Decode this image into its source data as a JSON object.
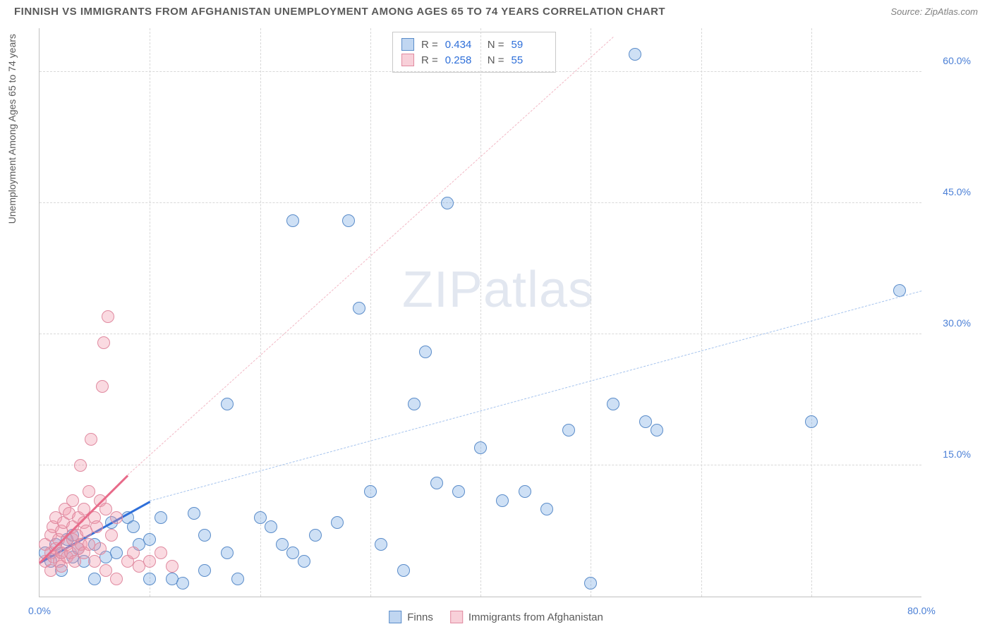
{
  "header": {
    "title": "FINNISH VS IMMIGRANTS FROM AFGHANISTAN UNEMPLOYMENT AMONG AGES 65 TO 74 YEARS CORRELATION CHART",
    "source": "Source: ZipAtlas.com"
  },
  "chart": {
    "type": "scatter",
    "y_axis_title": "Unemployment Among Ages 65 to 74 years",
    "xlim": [
      0,
      80
    ],
    "ylim": [
      0,
      65
    ],
    "x_ticks": [
      {
        "val": 0,
        "label": "0.0%"
      },
      {
        "val": 80,
        "label": "80.0%"
      }
    ],
    "y_ticks": [
      {
        "val": 15,
        "label": "15.0%"
      },
      {
        "val": 30,
        "label": "30.0%"
      },
      {
        "val": 45,
        "label": "45.0%"
      },
      {
        "val": 60,
        "label": "60.0%"
      }
    ],
    "x_gridlines": [
      10,
      20,
      30,
      40,
      50,
      60,
      70
    ],
    "y_gridlines": [
      15,
      30,
      45,
      60
    ],
    "background_color": "#ffffff",
    "grid_color": "#d8d8d8",
    "marker_radius": 9,
    "series": [
      {
        "name": "Finns",
        "color_fill": "rgba(115,165,225,0.35)",
        "color_stroke": "#5a8cc9",
        "trend_color": "#2e6fd9",
        "dash_color": "#a5c3ed",
        "R": "0.434",
        "N": "59",
        "trend_solid": {
          "x1": 0,
          "y1": 4,
          "x2": 10,
          "y2": 11
        },
        "trend_dash": {
          "x1": 10,
          "y1": 11,
          "x2": 80,
          "y2": 35
        },
        "points": [
          [
            0.5,
            5
          ],
          [
            1,
            4
          ],
          [
            1.5,
            6
          ],
          [
            2,
            5
          ],
          [
            2,
            3
          ],
          [
            2.5,
            6.5
          ],
          [
            3,
            4.5
          ],
          [
            3,
            7
          ],
          [
            3.5,
            5.5
          ],
          [
            4,
            4
          ],
          [
            5,
            6
          ],
          [
            5,
            2
          ],
          [
            6,
            4.5
          ],
          [
            6.5,
            8.5
          ],
          [
            7,
            5
          ],
          [
            8,
            9
          ],
          [
            8.5,
            8
          ],
          [
            9,
            6
          ],
          [
            10,
            2
          ],
          [
            10,
            6.5
          ],
          [
            11,
            9
          ],
          [
            12,
            2
          ],
          [
            13,
            1.5
          ],
          [
            14,
            9.5
          ],
          [
            15,
            7
          ],
          [
            15,
            3
          ],
          [
            17,
            5
          ],
          [
            17,
            22
          ],
          [
            18,
            2
          ],
          [
            20,
            9
          ],
          [
            21,
            8
          ],
          [
            22,
            6
          ],
          [
            23,
            43
          ],
          [
            23,
            5
          ],
          [
            24,
            4
          ],
          [
            25,
            7
          ],
          [
            27,
            8.5
          ],
          [
            28,
            43
          ],
          [
            29,
            33
          ],
          [
            30,
            12
          ],
          [
            31,
            6
          ],
          [
            33,
            3
          ],
          [
            34,
            22
          ],
          [
            35,
            28
          ],
          [
            36,
            13
          ],
          [
            37,
            45
          ],
          [
            38,
            12
          ],
          [
            40,
            17
          ],
          [
            42,
            11
          ],
          [
            44,
            12
          ],
          [
            46,
            10
          ],
          [
            48,
            19
          ],
          [
            50,
            1.5
          ],
          [
            52,
            22
          ],
          [
            54,
            62
          ],
          [
            55,
            20
          ],
          [
            56,
            19
          ],
          [
            70,
            20
          ],
          [
            78,
            35
          ]
        ]
      },
      {
        "name": "Immigrants from Afghanistan",
        "color_fill": "rgba(240,150,170,0.35)",
        "color_stroke": "#e08aa0",
        "trend_color": "#e86b8a",
        "dash_color": "#f2b8c5",
        "R": "0.258",
        "N": "55",
        "trend_solid": {
          "x1": 0,
          "y1": 4,
          "x2": 8,
          "y2": 14
        },
        "trend_dash": {
          "x1": 8,
          "y1": 14,
          "x2": 52,
          "y2": 64
        },
        "points": [
          [
            0.5,
            4
          ],
          [
            0.5,
            6
          ],
          [
            1,
            5
          ],
          [
            1,
            7
          ],
          [
            1,
            3
          ],
          [
            1.2,
            8
          ],
          [
            1.3,
            4.5
          ],
          [
            1.5,
            9
          ],
          [
            1.5,
            5.5
          ],
          [
            1.7,
            6.5
          ],
          [
            1.8,
            4
          ],
          [
            2,
            7.5
          ],
          [
            2,
            5
          ],
          [
            2,
            3.5
          ],
          [
            2.2,
            8.5
          ],
          [
            2.3,
            10
          ],
          [
            2.5,
            6
          ],
          [
            2.5,
            4.5
          ],
          [
            2.7,
            9.5
          ],
          [
            2.8,
            5
          ],
          [
            3,
            8
          ],
          [
            3,
            6.5
          ],
          [
            3,
            11
          ],
          [
            3.2,
            4
          ],
          [
            3.4,
            7
          ],
          [
            3.5,
            9
          ],
          [
            3.5,
            5.5
          ],
          [
            3.7,
            15
          ],
          [
            3.8,
            6
          ],
          [
            4,
            8.5
          ],
          [
            4,
            10
          ],
          [
            4,
            5
          ],
          [
            4.2,
            7.5
          ],
          [
            4.5,
            12
          ],
          [
            4.5,
            6
          ],
          [
            4.7,
            18
          ],
          [
            5,
            9
          ],
          [
            5,
            4
          ],
          [
            5.2,
            8
          ],
          [
            5.5,
            11
          ],
          [
            5.5,
            5.5
          ],
          [
            5.7,
            24
          ],
          [
            5.8,
            29
          ],
          [
            6,
            10
          ],
          [
            6,
            3
          ],
          [
            6.2,
            32
          ],
          [
            6.5,
            7
          ],
          [
            7,
            2
          ],
          [
            7,
            9
          ],
          [
            8,
            4
          ],
          [
            8.5,
            5
          ],
          [
            9,
            3.5
          ],
          [
            10,
            4
          ],
          [
            11,
            5
          ],
          [
            12,
            3.5
          ]
        ]
      }
    ],
    "watermark": {
      "part1": "ZIP",
      "part2": "atlas"
    },
    "stats_labels": {
      "R": "R =",
      "N": "N ="
    },
    "legend": {
      "items": [
        {
          "label": "Finns",
          "swatch": "blue"
        },
        {
          "label": "Immigrants from Afghanistan",
          "swatch": "pink"
        }
      ]
    }
  }
}
